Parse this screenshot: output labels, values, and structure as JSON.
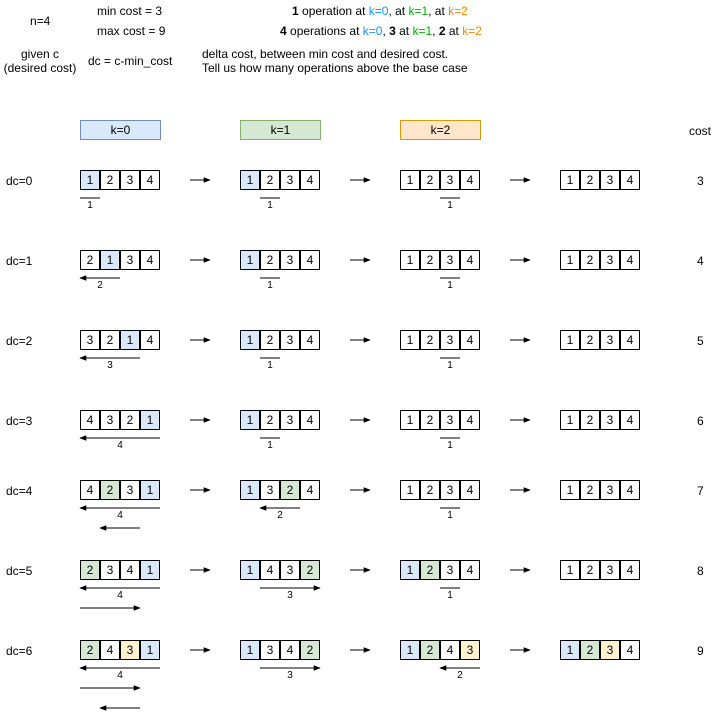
{
  "header": {
    "n": "n=4",
    "min_cost": "min cost = 3",
    "max_cost": "max cost = 9",
    "op1_prefix": "1",
    "op1_text": " operation at ",
    "op1_k0": "k=0",
    "op1_sep1": ", at ",
    "op1_k1": "k=1",
    "op1_sep2": ", at ",
    "op1_k2": "k=2",
    "op2_prefix": "4",
    "op2_text": " operations at ",
    "op2_k0": "k=0",
    "op2_sep1": ", ",
    "op2_n3": "3",
    "op2_at1": " at ",
    "op2_k1": "k=1",
    "op2_sep2": ", ",
    "op2_n2": "2",
    "op2_at2": " at ",
    "op2_k2": "k=2",
    "given_c_1": "given c",
    "given_c_2": "(desired cost)",
    "dc_formula": "dc = c-min_cost",
    "delta_1": "delta cost, between min cost and desired cost.",
    "delta_2": "Tell us how many operations above the base case"
  },
  "columns": {
    "k0": "k=0",
    "k1": "k=1",
    "k2": "k=2",
    "cost": "cost"
  },
  "colors": {
    "blue_text": "#1e90ff",
    "green_text": "#00b000",
    "orange_text": "#ff8000",
    "blue_fill": "#dae8fc",
    "blue_border": "#6c8ebf",
    "green_fill": "#d5e8d4",
    "green_border": "#82b366",
    "yellow_fill": "#fff2cc",
    "yellow_border": "#d6b656"
  },
  "rows": [
    {
      "dc": "dc=0",
      "cost": "3",
      "arrays": [
        {
          "cells": [
            "1",
            "2",
            "3",
            "4"
          ],
          "fills": [
            "b",
            "",
            "",
            ""
          ],
          "labels": [
            "1"
          ]
        },
        {
          "cells": [
            "1",
            "2",
            "3",
            "4"
          ],
          "fills": [
            "b",
            "",
            "",
            ""
          ],
          "labels": [
            "1"
          ]
        },
        {
          "cells": [
            "1",
            "2",
            "3",
            "4"
          ],
          "fills": [
            "",
            "",
            "",
            ""
          ],
          "labels": [
            "1"
          ]
        },
        {
          "cells": [
            "1",
            "2",
            "3",
            "4"
          ],
          "fills": [
            "",
            "",
            "",
            ""
          ],
          "labels": []
        }
      ]
    },
    {
      "dc": "dc=1",
      "cost": "4",
      "arrays": [
        {
          "cells": [
            "2",
            "1",
            "3",
            "4"
          ],
          "fills": [
            "",
            "b",
            "",
            ""
          ],
          "labels": [
            "2"
          ]
        },
        {
          "cells": [
            "1",
            "2",
            "3",
            "4"
          ],
          "fills": [
            "b",
            "",
            "",
            ""
          ],
          "labels": [
            "1"
          ]
        },
        {
          "cells": [
            "1",
            "2",
            "3",
            "4"
          ],
          "fills": [
            "",
            "",
            "",
            ""
          ],
          "labels": [
            "1"
          ]
        },
        {
          "cells": [
            "1",
            "2",
            "3",
            "4"
          ],
          "fills": [
            "",
            "",
            "",
            ""
          ],
          "labels": []
        }
      ]
    },
    {
      "dc": "dc=2",
      "cost": "5",
      "arrays": [
        {
          "cells": [
            "3",
            "2",
            "1",
            "4"
          ],
          "fills": [
            "",
            "",
            "b",
            ""
          ],
          "labels": [
            "3"
          ]
        },
        {
          "cells": [
            "1",
            "2",
            "3",
            "4"
          ],
          "fills": [
            "b",
            "",
            "",
            ""
          ],
          "labels": [
            "1"
          ]
        },
        {
          "cells": [
            "1",
            "2",
            "3",
            "4"
          ],
          "fills": [
            "",
            "",
            "",
            ""
          ],
          "labels": [
            "1"
          ]
        },
        {
          "cells": [
            "1",
            "2",
            "3",
            "4"
          ],
          "fills": [
            "",
            "",
            "",
            ""
          ],
          "labels": []
        }
      ]
    },
    {
      "dc": "dc=3",
      "cost": "6",
      "arrays": [
        {
          "cells": [
            "4",
            "3",
            "2",
            "1"
          ],
          "fills": [
            "",
            "",
            "",
            "b"
          ],
          "labels": [
            "4"
          ]
        },
        {
          "cells": [
            "1",
            "2",
            "3",
            "4"
          ],
          "fills": [
            "b",
            "",
            "",
            ""
          ],
          "labels": [
            "1"
          ]
        },
        {
          "cells": [
            "1",
            "2",
            "3",
            "4"
          ],
          "fills": [
            "",
            "",
            "",
            ""
          ],
          "labels": [
            "1"
          ]
        },
        {
          "cells": [
            "1",
            "2",
            "3",
            "4"
          ],
          "fills": [
            "",
            "",
            "",
            ""
          ],
          "labels": []
        }
      ]
    },
    {
      "dc": "dc=4",
      "cost": "7",
      "arrays": [
        {
          "cells": [
            "4",
            "2",
            "3",
            "1"
          ],
          "fills": [
            "",
            "g",
            "",
            "b"
          ],
          "labels": [
            "4"
          ]
        },
        {
          "cells": [
            "1",
            "3",
            "2",
            "4"
          ],
          "fills": [
            "b",
            "",
            "g",
            ""
          ],
          "labels": [
            "2"
          ]
        },
        {
          "cells": [
            "1",
            "2",
            "3",
            "4"
          ],
          "fills": [
            "",
            "",
            "",
            ""
          ],
          "labels": [
            "1"
          ]
        },
        {
          "cells": [
            "1",
            "2",
            "3",
            "4"
          ],
          "fills": [
            "",
            "",
            "",
            ""
          ],
          "labels": []
        }
      ]
    },
    {
      "dc": "dc=5",
      "cost": "8",
      "arrays": [
        {
          "cells": [
            "2",
            "3",
            "4",
            "1"
          ],
          "fills": [
            "g",
            "",
            "",
            "b"
          ],
          "labels": [
            "4"
          ]
        },
        {
          "cells": [
            "1",
            "4",
            "3",
            "2"
          ],
          "fills": [
            "b",
            "",
            "",
            "g"
          ],
          "labels": [
            "3"
          ]
        },
        {
          "cells": [
            "1",
            "2",
            "3",
            "4"
          ],
          "fills": [
            "b",
            "g",
            "",
            ""
          ],
          "labels": [
            "1"
          ]
        },
        {
          "cells": [
            "1",
            "2",
            "3",
            "4"
          ],
          "fills": [
            "",
            "",
            "",
            ""
          ],
          "labels": []
        }
      ]
    },
    {
      "dc": "dc=6",
      "cost": "9",
      "arrays": [
        {
          "cells": [
            "2",
            "4",
            "3",
            "1"
          ],
          "fills": [
            "g",
            "",
            "y",
            "b"
          ],
          "labels": [
            "4"
          ]
        },
        {
          "cells": [
            "1",
            "3",
            "4",
            "2"
          ],
          "fills": [
            "b",
            "",
            "",
            "g"
          ],
          "labels": [
            "3"
          ]
        },
        {
          "cells": [
            "1",
            "2",
            "4",
            "3"
          ],
          "fills": [
            "b",
            "g",
            "",
            "y"
          ],
          "labels": [
            "2"
          ]
        },
        {
          "cells": [
            "1",
            "2",
            "3",
            "4"
          ],
          "fills": [
            "b",
            "g",
            "y",
            ""
          ],
          "labels": []
        }
      ]
    }
  ]
}
